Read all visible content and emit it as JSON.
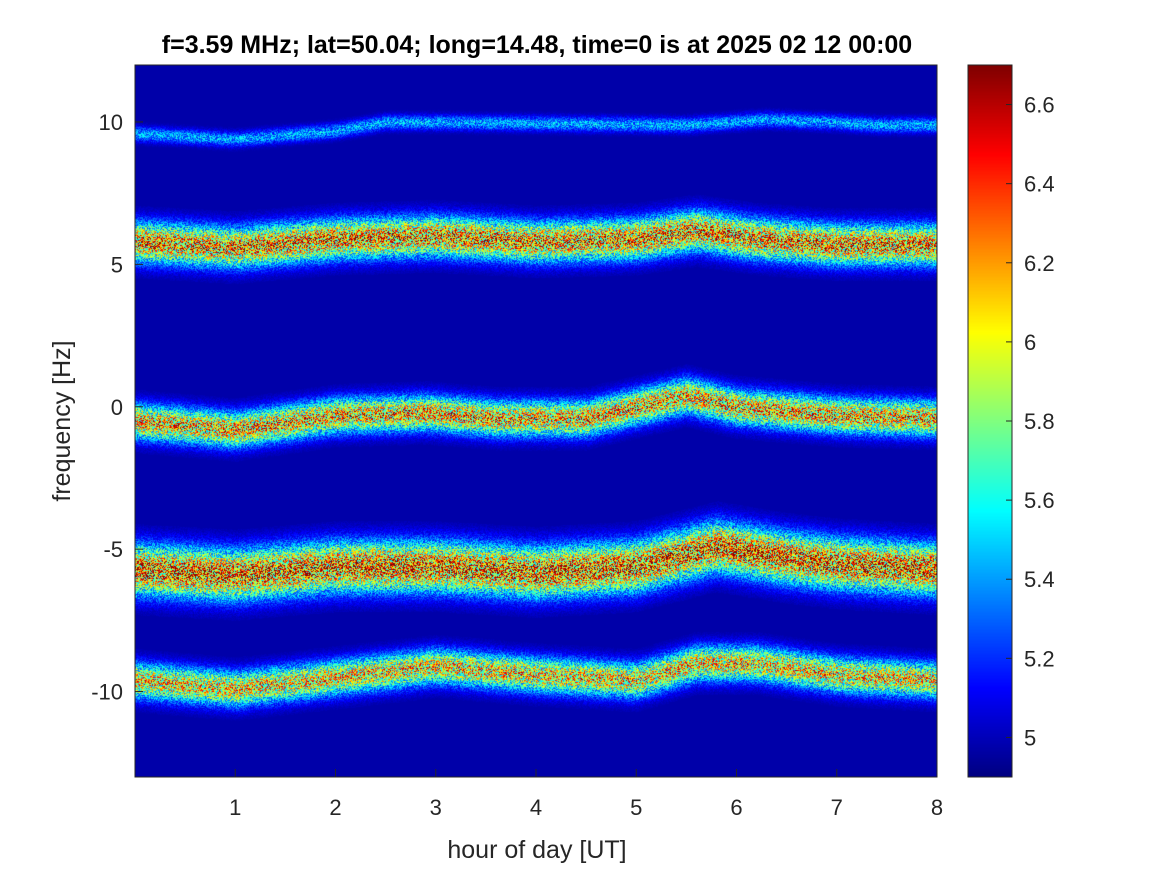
{
  "chart_data": {
    "type": "heatmap",
    "title": "f=3.59 MHz;  lat=50.04; long=14.48, time=0 is at 2025 02 12 00:00",
    "xlabel": "hour of day [UT]",
    "ylabel": "frequency [Hz]",
    "xlim": [
      0,
      8
    ],
    "ylim": [
      -13,
      12
    ],
    "x_ticks": [
      1,
      2,
      3,
      4,
      5,
      6,
      7,
      8
    ],
    "y_ticks": [
      -10,
      -5,
      0,
      5,
      10
    ],
    "colormap": "jet",
    "clim": [
      4.9,
      6.7
    ],
    "colorbar_ticks": [
      5,
      5.2,
      5.4,
      5.6,
      5.8,
      6,
      6.2,
      6.4,
      6.6
    ],
    "colorbar_position": "right",
    "background_color": "#00008F",
    "bands": [
      {
        "center_hz": [
          [
            0,
            9.6
          ],
          [
            1,
            9.4
          ],
          [
            2,
            9.7
          ],
          [
            2.5,
            10.0
          ],
          [
            3,
            10.0
          ],
          [
            5.5,
            9.9
          ],
          [
            6.3,
            10.1
          ],
          [
            7,
            10.0
          ],
          [
            7.4,
            9.9
          ]
        ],
        "halfwidth_hz": 0.3,
        "peak_intensity": 5.5
      },
      {
        "center_hz": [
          [
            0,
            5.8
          ],
          [
            1,
            5.6
          ],
          [
            2,
            5.9
          ],
          [
            3,
            6.0
          ],
          [
            4,
            5.8
          ],
          [
            5,
            5.9
          ],
          [
            5.6,
            6.2
          ],
          [
            6.2,
            5.9
          ],
          [
            7,
            5.7
          ],
          [
            8,
            5.7
          ]
        ],
        "halfwidth_hz": 0.8,
        "peak_intensity": 6.5
      },
      {
        "center_hz": [
          [
            0,
            -0.5
          ],
          [
            1,
            -0.8
          ],
          [
            2,
            -0.3
          ],
          [
            2.9,
            -0.2
          ],
          [
            3.6,
            -0.4
          ],
          [
            4.5,
            -0.4
          ],
          [
            5.5,
            0.4
          ],
          [
            6,
            0
          ],
          [
            7,
            -0.3
          ],
          [
            8,
            -0.4
          ]
        ],
        "halfwidth_hz": 0.7,
        "peak_intensity": 6.4
      },
      {
        "center_hz": [
          [
            0,
            -5.7
          ],
          [
            1,
            -5.9
          ],
          [
            2,
            -5.6
          ],
          [
            3,
            -5.6
          ],
          [
            4,
            -5.8
          ],
          [
            5,
            -5.6
          ],
          [
            5.8,
            -4.9
          ],
          [
            6.5,
            -5.3
          ],
          [
            7,
            -5.5
          ],
          [
            8,
            -5.7
          ]
        ],
        "halfwidth_hz": 1.0,
        "peak_intensity": 6.6
      },
      {
        "center_hz": [
          [
            0,
            -9.6
          ],
          [
            1,
            -9.9
          ],
          [
            2,
            -9.5
          ],
          [
            3,
            -9.1
          ],
          [
            4,
            -9.4
          ],
          [
            5,
            -9.6
          ],
          [
            5.6,
            -9.0
          ],
          [
            6.2,
            -9.0
          ],
          [
            7,
            -9.4
          ],
          [
            8,
            -9.6
          ]
        ],
        "halfwidth_hz": 0.7,
        "peak_intensity": 6.3
      }
    ]
  }
}
